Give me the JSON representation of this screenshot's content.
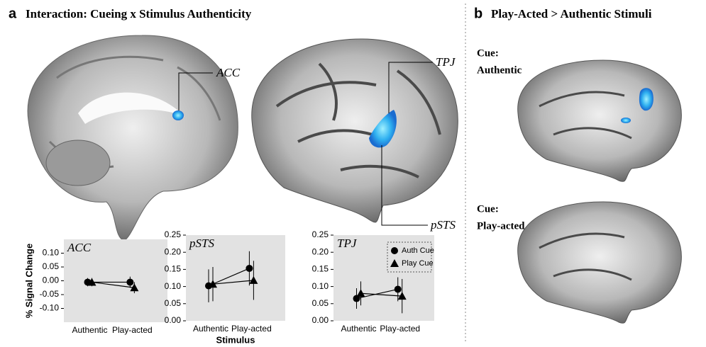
{
  "panels": {
    "a": {
      "letter": "a",
      "title": "Interaction: Cueing x Stimulus Authenticity"
    },
    "b": {
      "letter": "b",
      "title": "Play-Acted > Authentic Stimuli"
    }
  },
  "brain_labels": {
    "acc": "ACC",
    "tpj": "TPJ",
    "psts": "pSTS"
  },
  "cue_labels": [
    {
      "line1": "Cue:",
      "line2": "Authentic"
    },
    {
      "line1": "Cue:",
      "line2": "Play-acted"
    }
  ],
  "chart_data": [
    {
      "type": "errorbar",
      "title": "ACC",
      "y_label": "% Signal Change",
      "categories": [
        "Authentic",
        "Play-acted"
      ],
      "ylim": [
        -0.15,
        0.15
      ],
      "yticks": [
        {
          "value": -0.1,
          "label": "-0.10"
        },
        {
          "value": -0.05,
          "label": "-0.05"
        },
        {
          "value": 0,
          "label": "0.00"
        },
        {
          "value": 0.05,
          "label": "0.05"
        },
        {
          "value": 0.1,
          "label": "0.10"
        }
      ],
      "background": "#e2e2e2",
      "series": [
        {
          "marker": "circle",
          "color": "#000000",
          "values": [
            -0.005,
            -0.005
          ],
          "errors": [
            0.015,
            0.02
          ]
        },
        {
          "marker": "triangle",
          "color": "#000000",
          "values": [
            -0.005,
            -0.025
          ],
          "errors": [
            0.015,
            0.02
          ]
        }
      ]
    },
    {
      "type": "errorbar",
      "title": "pSTS",
      "x_label": "Stimulus",
      "categories": [
        "Authentic",
        "Play-acted"
      ],
      "ylim": [
        0,
        0.25
      ],
      "yticks": [
        {
          "value": 0,
          "label": "0.00"
        },
        {
          "value": 0.05,
          "label": "0.05"
        },
        {
          "value": 0.1,
          "label": "0.10"
        },
        {
          "value": 0.15,
          "label": "0.15"
        },
        {
          "value": 0.2,
          "label": "0.20"
        },
        {
          "value": 0.25,
          "label": "0.25"
        }
      ],
      "background": "#e2e2e2",
      "series": [
        {
          "marker": "circle",
          "color": "#000000",
          "values": [
            0.102,
            0.153
          ],
          "errors": [
            0.048,
            0.05
          ]
        },
        {
          "marker": "triangle",
          "color": "#000000",
          "values": [
            0.107,
            0.118
          ],
          "errors": [
            0.05,
            0.057
          ]
        }
      ]
    },
    {
      "type": "errorbar",
      "title": "TPJ",
      "legend": "top-right",
      "categories": [
        "Authentic",
        "Play-acted"
      ],
      "ylim": [
        0,
        0.25
      ],
      "yticks": [
        {
          "value": 0,
          "label": "0.00"
        },
        {
          "value": 0.05,
          "label": "0.05"
        },
        {
          "value": 0.1,
          "label": "0.10"
        },
        {
          "value": 0.15,
          "label": "0.15"
        },
        {
          "value": 0.2,
          "label": "0.20"
        },
        {
          "value": 0.25,
          "label": "0.25"
        }
      ],
      "background": "#e2e2e2",
      "series": [
        {
          "name": "Auth Cue",
          "marker": "circle",
          "color": "#000000",
          "values": [
            0.065,
            0.092
          ],
          "errors": [
            0.03,
            0.035
          ]
        },
        {
          "name": "Play Cue",
          "marker": "triangle",
          "color": "#000000",
          "values": [
            0.08,
            0.072
          ],
          "errors": [
            0.035,
            0.05
          ]
        }
      ]
    }
  ]
}
